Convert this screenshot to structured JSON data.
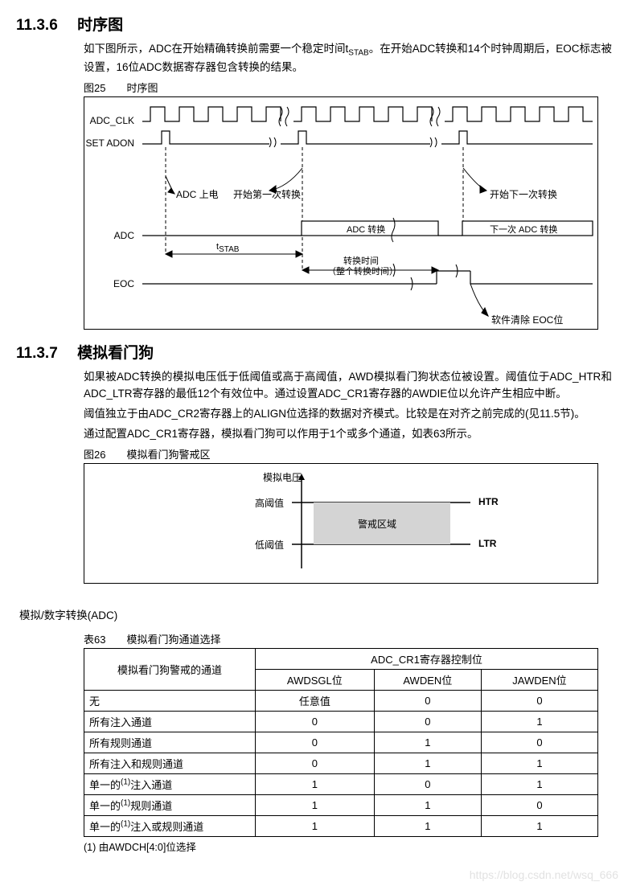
{
  "sec1": {
    "num": "11.3.6",
    "title": "时序图",
    "para": "如下图所示，ADC在开始精确转换前需要一个稳定时间tSTAB。在开始ADC转换和14个时钟周期后，EOC标志被设置，16位ADC数据寄存器包含转换的结果。",
    "fig25": "图25　　时序图",
    "sig1": "ADC_CLK",
    "sig2": "SET ADON",
    "sig3": "ADC",
    "sig4": "EOC",
    "lbl_poweron": "ADC 上电",
    "lbl_first": "开始第一次转换",
    "lbl_next": "开始下一次转换",
    "lbl_adcconv": "ADC 转换",
    "lbl_nextadc": "下一次 ADC 转换",
    "lbl_tstab": "tSTAB",
    "lbl_convtime1": "转换时间",
    "lbl_convtime2": "（整个转换时间）",
    "lbl_softclear": "软件清除 EOC位"
  },
  "sec2": {
    "num": "11.3.7",
    "title": "模拟看门狗",
    "p1": "如果被ADC转换的模拟电压低于低阈值或高于高阈值，AWD模拟看门狗状态位被设置。阈值位于ADC_HTR和ADC_LTR寄存器的最低12个有效位中。通过设置ADC_CR1寄存器的AWDIE位以允许产生相应中断。",
    "p2": "阈值独立于由ADC_CR2寄存器上的ALIGN位选择的数据对齐模式。比较是在对齐之前完成的(见11.5节)。",
    "p3": "通过配置ADC_CR1寄存器，模拟看门狗可以作用于1个或多个通道，如表63所示。",
    "fig26": "图26　　模拟看门狗警戒区",
    "lbl_analog": "模拟电压",
    "lbl_high": "高阈值",
    "lbl_low": "低阈值",
    "lbl_guard": "警戒区域",
    "lbl_htr": "HTR",
    "lbl_ltr": "LTR"
  },
  "bottom_label": "模拟/数字转换(ADC)",
  "table63": {
    "caption": "表63　　模拟看门狗通道选择",
    "h_channel": "模拟看门狗警戒的通道",
    "h_group": "ADC_CR1寄存器控制位",
    "h_c1": "AWDSGL位",
    "h_c2": "AWDEN位",
    "h_c3": "JAWDEN位",
    "rows": [
      [
        "无",
        "任意值",
        "0",
        "0"
      ],
      [
        "所有注入通道",
        "0",
        "0",
        "1"
      ],
      [
        "所有规则通道",
        "0",
        "1",
        "0"
      ],
      [
        "所有注入和规则通道",
        "0",
        "1",
        "1"
      ],
      [
        "单一的(1)注入通道",
        "1",
        "0",
        "1"
      ],
      [
        "单一的(1)规则通道",
        "1",
        "1",
        "0"
      ],
      [
        "单一的(1)注入或规则通道",
        "1",
        "1",
        "1"
      ]
    ],
    "note": "(1) 由AWDCH[4:0]位选择"
  },
  "watermark": "https://blog.csdn.net/wsq_666"
}
